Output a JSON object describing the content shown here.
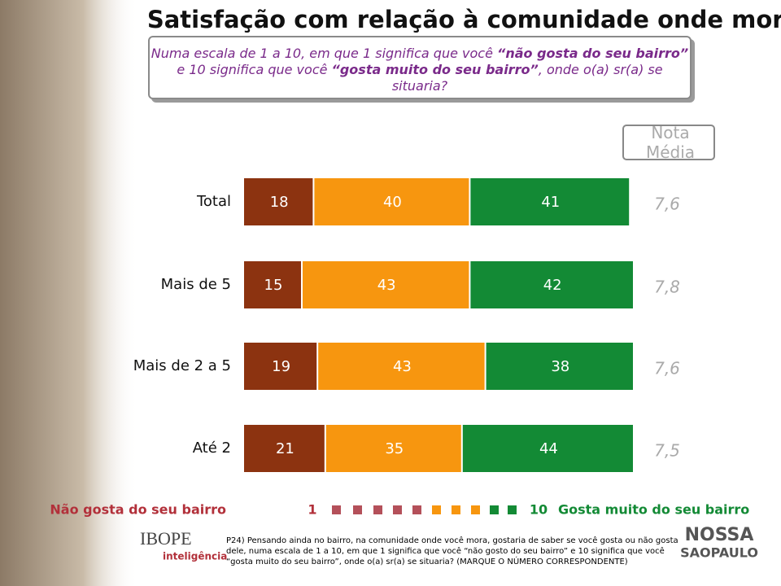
{
  "chart_data": {
    "type": "stacked-bar-horizontal",
    "title": "Satisfação com relação à comunidade onde mora",
    "question_parts": [
      "Numa escala de 1 a 10, em que 1 significa que você ",
      "“não gosta do seu bairro”",
      " e 10 significa que você ",
      "“gosta muito do seu bairro”",
      ", onde o(a) sr(a) se situaria?"
    ],
    "categories": [
      "Total",
      "Mais de 5",
      "Mais de 2 a 5",
      "Até 2"
    ],
    "series": [
      {
        "color": "#8c3310",
        "values": [
          18,
          15,
          19,
          21
        ]
      },
      {
        "color": "#f7960f",
        "values": [
          40,
          43,
          43,
          35
        ]
      },
      {
        "color": "#138a35",
        "values": [
          41,
          42,
          38,
          44
        ]
      }
    ],
    "xlim": [
      0,
      100
    ],
    "mean_header": "Nota Média",
    "mean_values": [
      7.6,
      7.8,
      7.6,
      7.5
    ],
    "mean_labels": [
      "7,6",
      "7,8",
      "7,6",
      "7,5"
    ],
    "scale_low_label": "Não gosta do seu bairro",
    "scale_low": 1,
    "scale_high": 10,
    "scale_high_label": "Gosta muito do seu bairro",
    "footnote": "P24) Pensando ainda no bairro, na comunidade onde você mora, gostaria de saber se você gosta ou não gosta dele, numa escala de 1 a 10, em que 1 significa que você “não gosto do seu bairro” e 10 significa que você “gosta muito do seu bairro”, onde o(a) sr(a) se situaria? (MARQUE O NÚMERO CORRESPONDENTE)",
    "logo_left": "IBOPE",
    "logo_left_sub": "inteligência",
    "logo_right_top": "NOSSA",
    "logo_right_bottom": "SAOPAULO"
  }
}
